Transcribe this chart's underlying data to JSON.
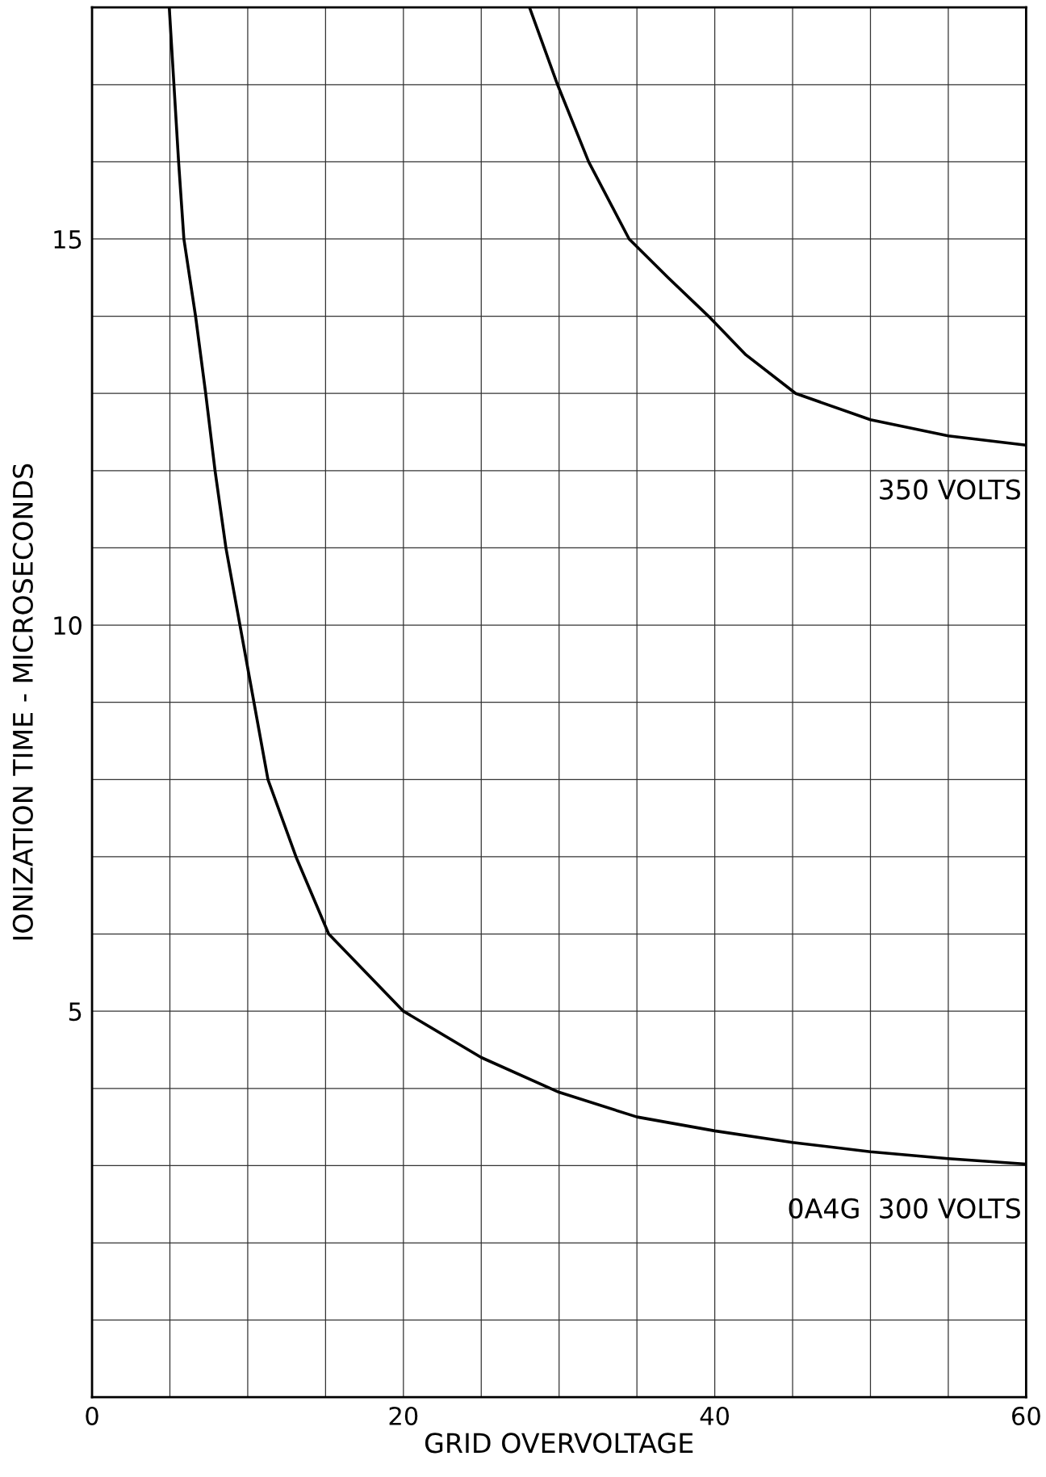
{
  "chart_data": {
    "type": "line",
    "xlabel": "GRID OVERVOLTAGE",
    "ylabel": "IONIZATION TIME - MICROSECONDS",
    "xlim": [
      0,
      60
    ],
    "ylim": [
      0,
      18
    ],
    "xticks": [
      0,
      {
        "value": 5,
        "label": null
      },
      {
        "value": 10,
        "label": null
      },
      {
        "value": 15,
        "label": null
      },
      20,
      {
        "value": 25,
        "label": null
      },
      {
        "value": 30,
        "label": null
      },
      {
        "value": 35,
        "label": null
      },
      40,
      {
        "value": 45,
        "label": null
      },
      {
        "value": 50,
        "label": null
      },
      {
        "value": 55,
        "label": null
      },
      60
    ],
    "yticks": [
      {
        "value": 1,
        "label": null
      },
      {
        "value": 2,
        "label": null
      },
      {
        "value": 3,
        "label": null
      },
      {
        "value": 4,
        "label": null
      },
      5,
      {
        "value": 6,
        "label": null
      },
      {
        "value": 7,
        "label": null
      },
      {
        "value": 8,
        "label": null
      },
      {
        "value": 9,
        "label": null
      },
      10,
      {
        "value": 11,
        "label": null
      },
      {
        "value": 12,
        "label": null
      },
      {
        "value": 13,
        "label": null
      },
      {
        "value": 14,
        "label": null
      },
      15,
      {
        "value": 16,
        "label": null
      },
      {
        "value": 17,
        "label": null
      },
      {
        "value": 18,
        "label": null
      }
    ],
    "grid": true,
    "marker": "none",
    "line_style": "solid",
    "series": [
      {
        "name": "350 VOLTS",
        "color": "#000000",
        "x": [
          28.1,
          29.9,
          31.9,
          34.5,
          37,
          39.6,
          42,
          45.2,
          50,
          55,
          60
        ],
        "values": [
          18,
          17,
          16,
          15,
          14.5,
          14,
          13.5,
          13,
          12.66,
          12.45,
          12.33
        ]
      },
      {
        "name": "0A4G  300 VOLTS",
        "color": "#000000",
        "x": [
          4.96,
          5.26,
          5.56,
          5.9,
          6.65,
          7.3,
          7.9,
          8.6,
          9.5,
          11.3,
          13.1,
          15.2,
          20,
          25,
          30,
          35,
          40,
          45,
          50,
          55,
          60
        ],
        "values": [
          18,
          17,
          16,
          15,
          14,
          13,
          12,
          11,
          10,
          8,
          7,
          6,
          5,
          4.4,
          3.95,
          3.63,
          3.45,
          3.3,
          3.18,
          3.09,
          3.02
        ]
      }
    ]
  }
}
